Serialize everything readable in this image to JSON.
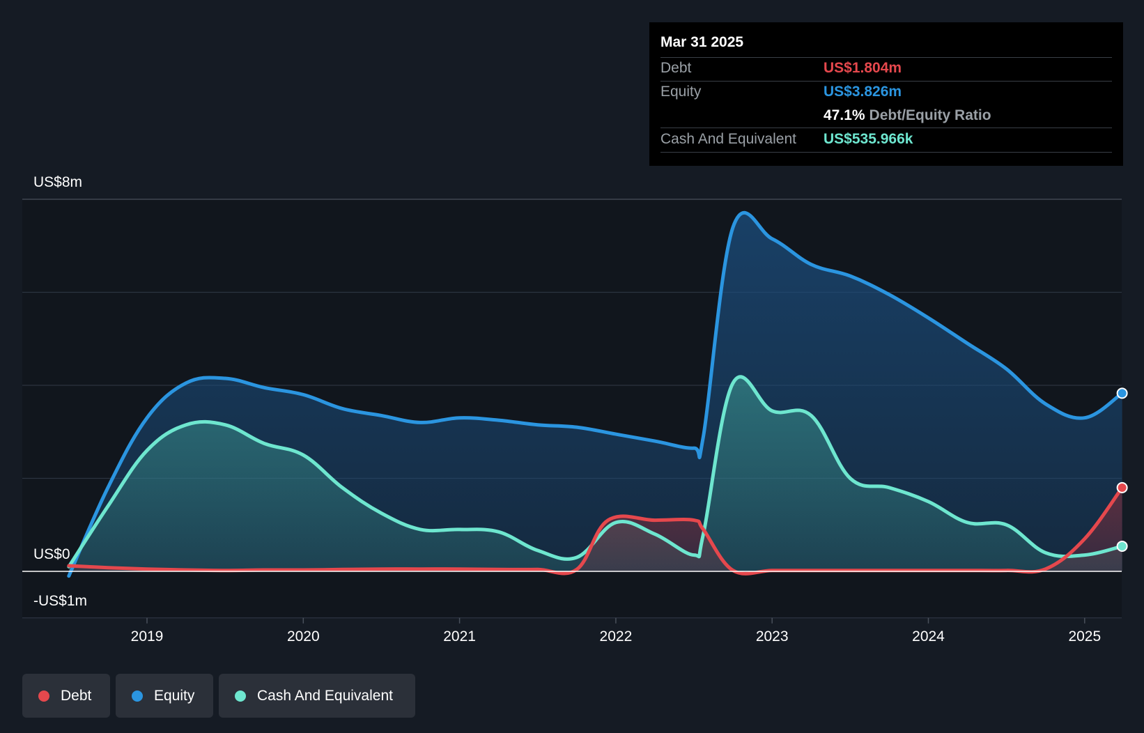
{
  "tooltip": {
    "date": "Mar 31 2025",
    "debt_label": "Debt",
    "debt_value": "US$1.804m",
    "equity_label": "Equity",
    "equity_value": "US$3.826m",
    "ratio_value": "47.1%",
    "ratio_label": "Debt/Equity Ratio",
    "cash_label": "Cash And Equivalent",
    "cash_value": "US$535.966k"
  },
  "y_axis": {
    "top_label": "US$8m",
    "zero_label": "US$0",
    "bottom_label": "-US$1m"
  },
  "legend": [
    {
      "label": "Debt",
      "color": "#e5484d"
    },
    {
      "label": "Equity",
      "color": "#2b95e0"
    },
    {
      "label": "Cash And Equivalent",
      "color": "#6ee6cf"
    }
  ],
  "colors": {
    "background": "#151b24",
    "plot_background": "#11161d",
    "grid": "#2c3440",
    "debt": "#e5484d",
    "equity": "#2b95e0",
    "cash": "#6ee6cf"
  },
  "chart_data": {
    "type": "area",
    "title": "",
    "xlabel": "",
    "ylabel": "",
    "unit": "US$m",
    "ylim": [
      -1,
      8
    ],
    "x_ticks": [
      2019,
      2020,
      2021,
      2022,
      2023,
      2024,
      2025
    ],
    "x_tick_labels": [
      "2019",
      "2020",
      "2021",
      "2022",
      "2023",
      "2024",
      "2025"
    ],
    "x_range": [
      2018.5,
      2025.24
    ],
    "series": [
      {
        "name": "Equity",
        "x": [
          2018.5,
          2018.75,
          2019.0,
          2019.25,
          2019.5,
          2019.75,
          2020.0,
          2020.25,
          2020.5,
          2020.75,
          2021.0,
          2021.25,
          2021.5,
          2021.75,
          2022.0,
          2022.25,
          2022.5,
          2022.56,
          2022.75,
          2023.0,
          2023.25,
          2023.5,
          2023.75,
          2024.0,
          2024.25,
          2024.5,
          2024.75,
          2025.0,
          2025.24
        ],
        "values": [
          -0.1,
          1.8,
          3.3,
          4.05,
          4.15,
          3.95,
          3.8,
          3.5,
          3.35,
          3.2,
          3.3,
          3.25,
          3.15,
          3.1,
          2.95,
          2.8,
          2.65,
          2.9,
          7.4,
          7.15,
          6.6,
          6.35,
          5.95,
          5.45,
          4.9,
          4.35,
          3.6,
          3.3,
          3.83
        ]
      },
      {
        "name": "Cash And Equivalent",
        "x": [
          2018.5,
          2018.75,
          2019.0,
          2019.25,
          2019.5,
          2019.75,
          2020.0,
          2020.25,
          2020.5,
          2020.75,
          2021.0,
          2021.25,
          2021.5,
          2021.75,
          2022.0,
          2022.25,
          2022.5,
          2022.56,
          2022.75,
          2023.0,
          2023.25,
          2023.5,
          2023.75,
          2024.0,
          2024.25,
          2024.5,
          2024.75,
          2025.0,
          2025.24
        ],
        "values": [
          0.1,
          1.4,
          2.6,
          3.15,
          3.15,
          2.75,
          2.5,
          1.8,
          1.25,
          0.9,
          0.9,
          0.85,
          0.45,
          0.3,
          1.05,
          0.8,
          0.35,
          0.8,
          4.05,
          3.45,
          3.35,
          2.0,
          1.8,
          1.5,
          1.05,
          1.0,
          0.4,
          0.35,
          0.54
        ]
      },
      {
        "name": "Debt",
        "x": [
          2018.5,
          2018.75,
          2019.0,
          2019.25,
          2019.5,
          2019.75,
          2020.0,
          2020.25,
          2020.5,
          2020.75,
          2021.0,
          2021.25,
          2021.5,
          2021.75,
          2021.95,
          2022.25,
          2022.5,
          2022.56,
          2022.75,
          2023.0,
          2023.25,
          2023.5,
          2023.75,
          2024.0,
          2024.25,
          2024.5,
          2024.75,
          2025.0,
          2025.24
        ],
        "values": [
          0.12,
          0.08,
          0.05,
          0.03,
          0.02,
          0.03,
          0.03,
          0.04,
          0.05,
          0.05,
          0.05,
          0.04,
          0.04,
          0.04,
          1.1,
          1.1,
          1.1,
          0.9,
          0.02,
          0.02,
          0.02,
          0.02,
          0.02,
          0.02,
          0.02,
          0.02,
          0.05,
          0.7,
          1.8
        ]
      }
    ]
  }
}
